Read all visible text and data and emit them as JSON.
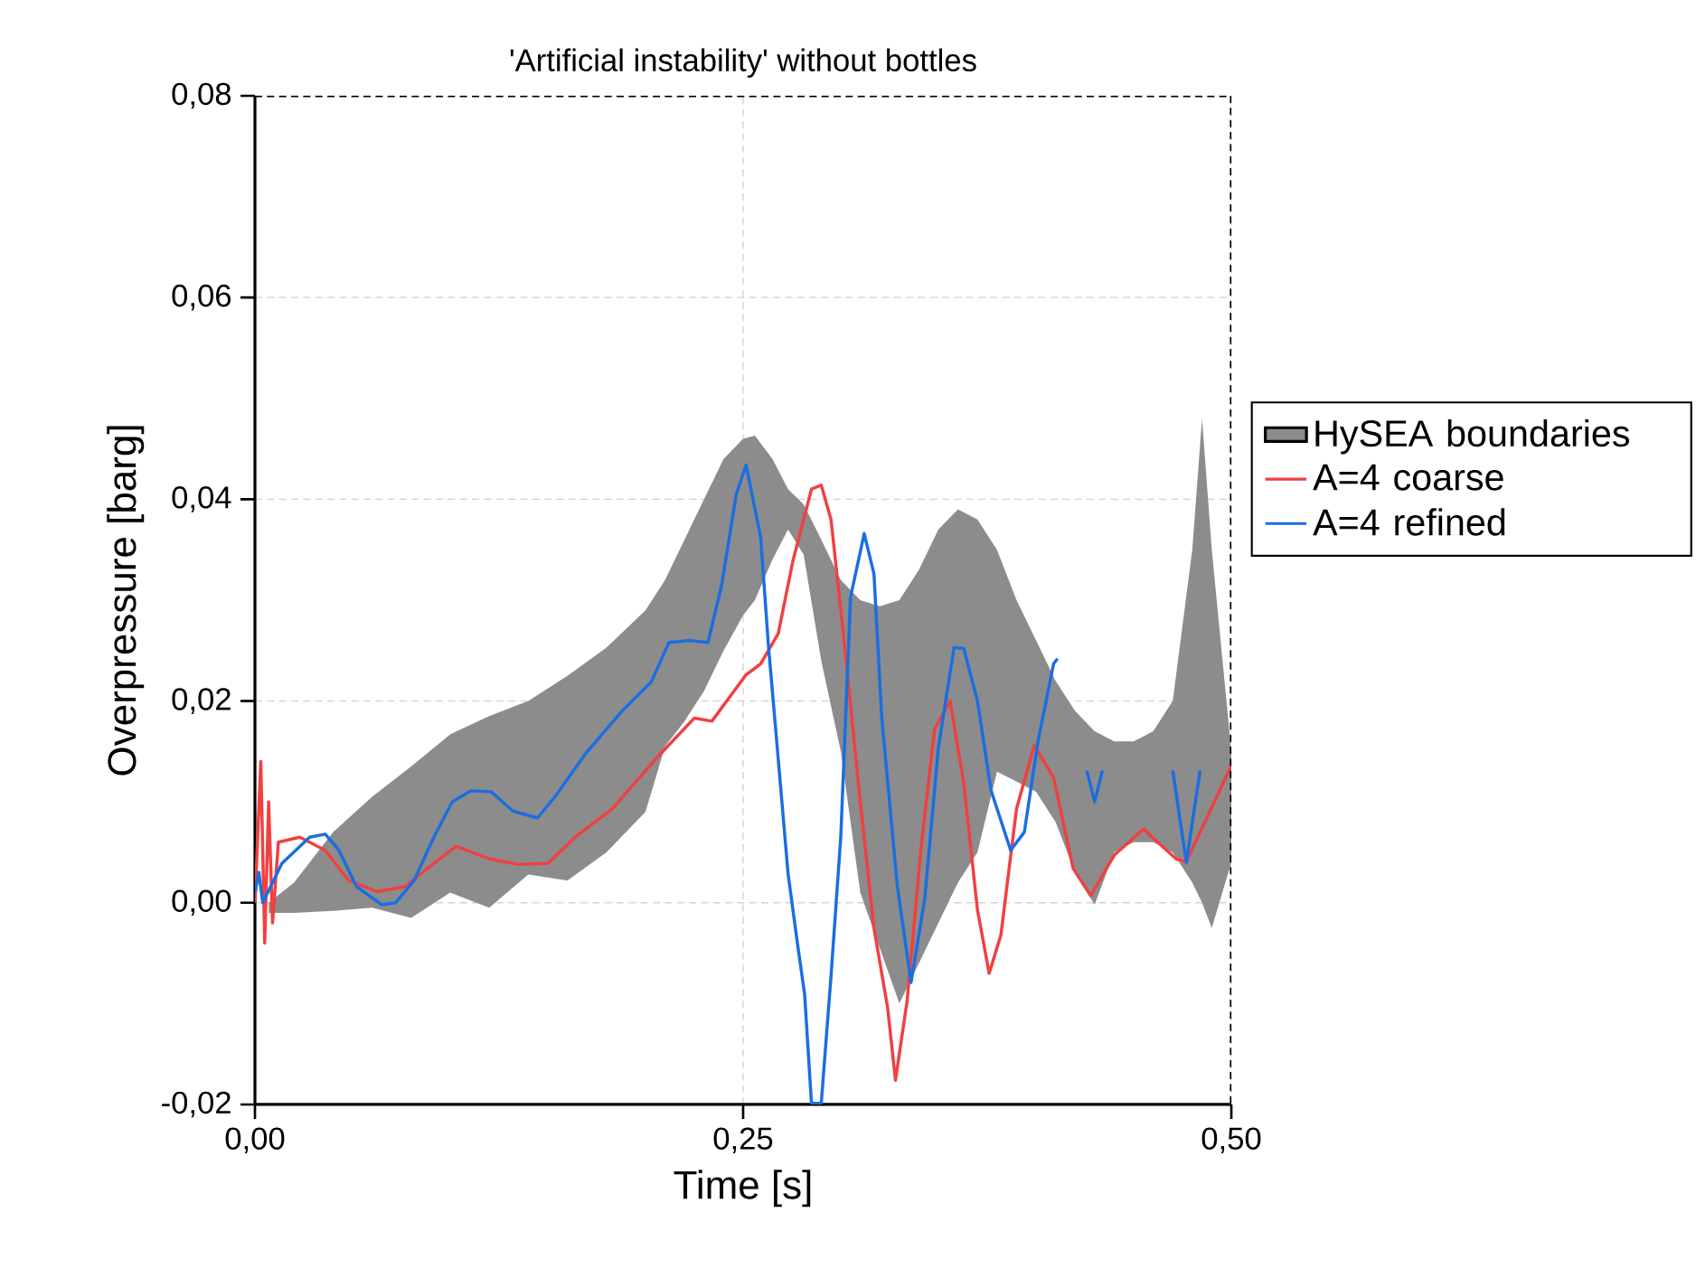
{
  "chart_data": {
    "type": "line",
    "title": "'Artificial instability' without bottles",
    "xlabel": "Time [s]",
    "ylabel": "Overpressure [barg]",
    "xlim": [
      0,
      0.5
    ],
    "ylim": [
      -0.02,
      0.08
    ],
    "xticks": [
      {
        "value": 0,
        "label": "0,00"
      },
      {
        "value": 0.25,
        "label": "0,25"
      },
      {
        "value": 0.5,
        "label": "0,50"
      }
    ],
    "yticks": [
      {
        "value": -0.02,
        "label": "-0,02"
      },
      {
        "value": 0,
        "label": "0,00"
      },
      {
        "value": 0.02,
        "label": "0,02"
      },
      {
        "value": 0.04,
        "label": "0,04"
      },
      {
        "value": 0.06,
        "label": "0,06"
      },
      {
        "value": 0.08,
        "label": "0,08"
      }
    ],
    "grid": true,
    "legend": "right",
    "series": [
      {
        "name": "HySEA boundaries",
        "type": "area",
        "color": "#8c8c8c",
        "x": [
          0.007,
          0.02,
          0.04,
          0.06,
          0.08,
          0.1,
          0.12,
          0.14,
          0.16,
          0.18,
          0.2,
          0.21,
          0.22,
          0.23,
          0.24,
          0.25,
          0.256,
          0.265,
          0.273,
          0.281,
          0.29,
          0.3,
          0.31,
          0.32,
          0.33,
          0.34,
          0.35,
          0.36,
          0.37,
          0.38,
          0.39,
          0.4,
          0.41,
          0.42,
          0.43,
          0.44,
          0.45,
          0.46,
          0.47,
          0.48,
          0.485,
          0.49,
          0.5
        ],
        "values": [
          null,
          null,
          null,
          null,
          null,
          null,
          null,
          null,
          null,
          null,
          null,
          null,
          null,
          null,
          null,
          null,
          null,
          null,
          null,
          null,
          null,
          null,
          null,
          null,
          null,
          null,
          null,
          null,
          null,
          null,
          null,
          null,
          null,
          null,
          null,
          null,
          null,
          null,
          null,
          null,
          null,
          null,
          null
        ],
        "upper": [
          0.0,
          0.002,
          0.007,
          0.0105,
          0.0135,
          0.0167,
          0.0185,
          0.02,
          0.0225,
          0.0253,
          0.029,
          0.032,
          0.036,
          0.04,
          0.044,
          0.046,
          0.0463,
          0.044,
          0.041,
          0.0395,
          0.036,
          0.032,
          0.03,
          0.0294,
          0.03,
          0.033,
          0.037,
          0.039,
          0.038,
          0.035,
          0.03,
          0.026,
          0.022,
          0.019,
          0.017,
          0.016,
          0.016,
          0.017,
          0.02,
          0.035,
          0.048,
          0.035,
          0.015
        ],
        "lower": [
          -0.001,
          -0.001,
          -0.0008,
          -0.0005,
          -0.0015,
          0.001,
          -0.0005,
          0.0028,
          0.0022,
          0.005,
          0.009,
          0.0155,
          0.018,
          0.021,
          0.025,
          0.0285,
          0.03,
          0.034,
          0.037,
          0.0345,
          0.024,
          0.015,
          0.001,
          -0.0045,
          -0.01,
          -0.006,
          -0.002,
          0.002,
          0.005,
          0.013,
          0.012,
          0.011,
          0.008,
          0.003,
          -0.0002,
          0.005,
          0.006,
          0.006,
          0.005,
          0.002,
          0.0,
          -0.0025,
          0.004
        ]
      },
      {
        "name": "A=4 coarse",
        "color": "#f04040",
        "x": [
          0,
          0.003,
          0.005,
          0.007,
          0.009,
          0.012,
          0.023,
          0.036,
          0.048,
          0.0625,
          0.077,
          0.0916,
          0.103,
          0.121,
          0.135,
          0.15,
          0.164,
          0.183,
          0.205,
          0.225,
          0.234,
          0.2515,
          0.259,
          0.268,
          0.2755,
          0.285,
          0.29,
          0.295,
          0.302,
          0.31,
          0.317,
          0.324,
          0.328,
          0.334,
          0.341,
          0.348,
          0.356,
          0.363,
          0.37,
          0.376,
          0.382,
          0.39,
          0.399,
          0.409,
          0.419,
          0.428,
          0.44,
          0.455,
          0.472,
          0.477,
          0.5
        ],
        "values": [
          0.0,
          0.014,
          -0.004,
          0.01,
          -0.002,
          0.006,
          0.0065,
          0.0052,
          0.0022,
          0.0011,
          0.0016,
          0.0039,
          0.0056,
          0.0043,
          0.0038,
          0.0039,
          0.0065,
          0.0093,
          0.0142,
          0.0183,
          0.018,
          0.0226,
          0.0237,
          0.0267,
          0.0339,
          0.041,
          0.0414,
          0.038,
          0.0254,
          0.01,
          -0.0025,
          -0.0104,
          -0.0176,
          -0.0097,
          0.0052,
          0.0172,
          0.02,
          0.0118,
          -0.0007,
          -0.007,
          -0.0032,
          0.0093,
          0.0156,
          0.0124,
          0.0034,
          0.0007,
          0.0047,
          0.0073,
          0.0043,
          0.0041,
          0.0136
        ]
      },
      {
        "name": "A=4 refined",
        "color": "#1a6ee0",
        "x": [
          0,
          0.002,
          0.004,
          0.0138,
          0.028,
          0.036,
          0.043,
          0.052,
          0.065,
          0.072,
          0.0815,
          0.0916,
          0.101,
          0.1105,
          0.121,
          0.132,
          0.1447,
          0.154,
          0.169,
          0.188,
          0.203,
          0.212,
          0.2225,
          0.232,
          0.239,
          0.2465,
          0.2515,
          0.259,
          0.263,
          0.268,
          0.273,
          0.278,
          0.2815,
          0.285,
          0.29,
          0.295,
          0.3,
          0.305,
          0.312,
          0.317,
          0.321,
          0.329,
          0.336,
          0.343,
          0.35,
          0.358,
          0.363,
          0.37,
          0.377,
          0.387,
          0.394,
          0.401,
          0.409,
          0.411,
          0.415,
          0.426,
          0.43,
          0.434,
          0.44,
          0.47,
          0.477,
          0.484
        ],
        "values": [
          0.001,
          0.003,
          0.0,
          0.0039,
          0.0065,
          0.0068,
          0.0052,
          0.0016,
          -0.0002,
          0.0,
          0.0022,
          0.0065,
          0.01,
          0.0111,
          0.011,
          0.0091,
          0.0084,
          0.0106,
          0.0147,
          0.019,
          0.0219,
          0.0258,
          0.026,
          0.0258,
          0.0315,
          0.0405,
          0.0434,
          0.0362,
          0.0254,
          0.0142,
          0.0029,
          -0.0043,
          -0.0091,
          -0.0199,
          -0.0199,
          -0.0073,
          0.0065,
          0.0303,
          0.0366,
          0.0326,
          0.0183,
          0.0016,
          -0.0079,
          0.0004,
          0.0154,
          0.0253,
          0.0252,
          0.02,
          0.0111,
          0.0052,
          0.007,
          0.016,
          0.0237,
          0.0242,
          null,
          0.0131,
          0.01,
          0.0131,
          null,
          0.0131,
          0.004,
          0.0131
        ]
      }
    ]
  }
}
